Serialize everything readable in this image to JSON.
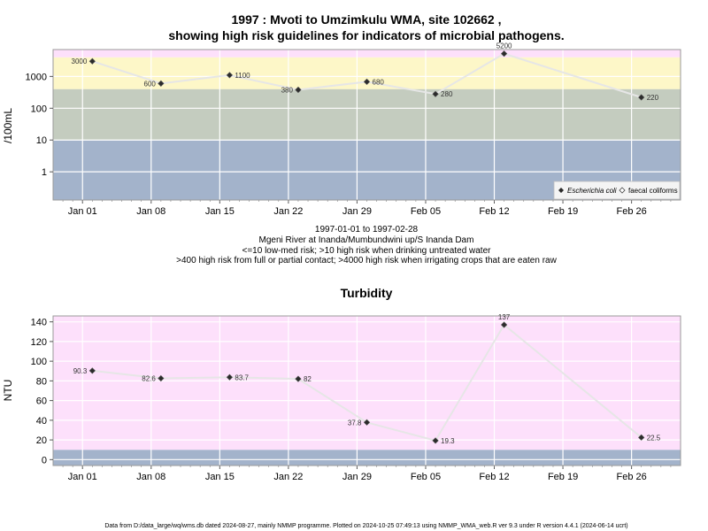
{
  "chart_data": [
    {
      "type": "line",
      "title": "1997 : Mvoti to Umzimkulu WMA, site 102662 ,",
      "subtitle": "showing high risk guidelines for indicators of microbial pathogens.",
      "ylabel": "/100mL",
      "yscale": "log",
      "yticks": [
        1,
        10,
        100,
        1000
      ],
      "ytick_labels": [
        "1",
        "10",
        "100",
        "1000"
      ],
      "xticks": [
        "1997-01-01",
        "1997-01-08",
        "1997-01-15",
        "1997-01-22",
        "1997-01-29",
        "1997-02-05",
        "1997-02-12",
        "1997-02-19",
        "1997-02-26"
      ],
      "xtick_labels": [
        "Jan 01",
        "Jan 08",
        "Jan 15",
        "Jan 22",
        "Jan 29",
        "Feb 05",
        "Feb 12",
        "Feb 19",
        "Feb 26"
      ],
      "grid": true,
      "bands": [
        {
          "from": 0.1,
          "to": 10,
          "color": "#a3b3cb"
        },
        {
          "from": 10,
          "to": 400,
          "color": "#c4ccbf"
        },
        {
          "from": 400,
          "to": 4000,
          "color": "#fdf7c8"
        },
        {
          "from": 4000,
          "to": 20000,
          "color": "#fde0fb"
        }
      ],
      "series": [
        {
          "name": "Escherichia coli",
          "marker": "filled-diamond",
          "points": [
            {
              "x": "1997-01-02",
              "y": 3000,
              "label": "3000"
            },
            {
              "x": "1997-01-09",
              "y": 600,
              "label": "600"
            },
            {
              "x": "1997-01-16",
              "y": 1100,
              "label": "1100"
            },
            {
              "x": "1997-01-23",
              "y": 380,
              "label": "380"
            },
            {
              "x": "1997-01-30",
              "y": 680,
              "label": "680"
            },
            {
              "x": "1997-02-06",
              "y": 280,
              "label": "280"
            },
            {
              "x": "1997-02-13",
              "y": 5200,
              "label": "5200"
            },
            {
              "x": "1997-02-27",
              "y": 220,
              "label": "220"
            }
          ]
        }
      ],
      "legend": {
        "placement": "bottom-right",
        "entries": [
          {
            "label": "Escherichia coli",
            "marker": "filled-diamond"
          },
          {
            "label": "faecal coliforms",
            "marker": "open-diamond"
          }
        ]
      },
      "caption_lines": [
        "1997-01-01 to 1997-02-28",
        "Mgeni River at Inanda/Mumbundwini up/S Inanda Dam",
        "<=10 low-med risk; >10 high risk when drinking untreated water",
        ">400 high risk from full or partial contact; >4000 high risk when irrigating crops that are eaten raw"
      ]
    },
    {
      "type": "line",
      "title": "Turbidity",
      "ylabel": "NTU",
      "yticks": [
        0,
        20,
        40,
        60,
        80,
        100,
        120,
        140
      ],
      "ytick_labels": [
        "0",
        "20",
        "40",
        "60",
        "80",
        "100",
        "120",
        "140"
      ],
      "xticks": [
        "1997-01-01",
        "1997-01-08",
        "1997-01-15",
        "1997-01-22",
        "1997-01-29",
        "1997-02-05",
        "1997-02-12",
        "1997-02-19",
        "1997-02-26"
      ],
      "xtick_labels": [
        "Jan 01",
        "Jan 08",
        "Jan 15",
        "Jan 22",
        "Jan 29",
        "Feb 05",
        "Feb 12",
        "Feb 19",
        "Feb 26"
      ],
      "grid": true,
      "bands": [
        {
          "from": -6,
          "to": 10,
          "color": "#a3b3cb"
        },
        {
          "from": 10,
          "to": 146,
          "color": "#fde0fb"
        }
      ],
      "series": [
        {
          "marker": "filled-diamond",
          "points": [
            {
              "x": "1997-01-02",
              "y": 90.3,
              "label": "90.3"
            },
            {
              "x": "1997-01-09",
              "y": 82.6,
              "label": "82.6"
            },
            {
              "x": "1997-01-16",
              "y": 83.7,
              "label": "83.7"
            },
            {
              "x": "1997-01-23",
              "y": 82,
              "label": "82"
            },
            {
              "x": "1997-01-30",
              "y": 37.8,
              "label": "37.8"
            },
            {
              "x": "1997-02-06",
              "y": 19.3,
              "label": "19.3"
            },
            {
              "x": "1997-02-13",
              "y": 137,
              "label": "137"
            },
            {
              "x": "1997-02-27",
              "y": 22.5,
              "label": "22.5"
            }
          ]
        }
      ]
    }
  ],
  "footer": "Data from D:/data_large/wq/wms.db dated 2024-08-27, mainly NMMP programme. Plotted on 2024-10-25 07:49:13 using NMMP_WMA_web.R ver 9.3 under R version 4.4.1 (2024-06-14 ucrt)"
}
